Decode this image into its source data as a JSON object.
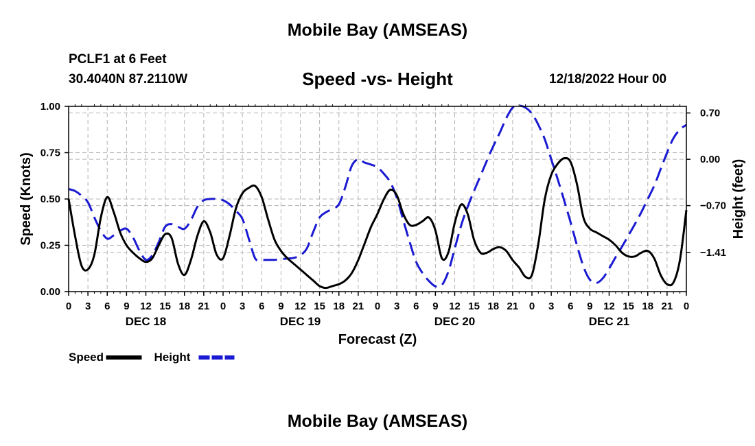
{
  "header": {
    "title": "Mobile Bay (AMSEAS)",
    "station": "PCLF1 at 6 Feet",
    "coords": "30.4040N  87.2110W",
    "subtitle": "Speed -vs- Height",
    "datetime": "12/18/2022 Hour 00"
  },
  "footer": {
    "title": "Mobile Bay (AMSEAS)"
  },
  "chart_data": {
    "type": "line",
    "title": "Speed -vs- Height",
    "xlabel": "Forecast (Z)",
    "ylabel": "Speed (Knots)",
    "y2label": "Height (feet)",
    "xlim": [
      0,
      96
    ],
    "ylim": [
      0,
      1
    ],
    "y2lim": [
      -2.0,
      0.8
    ],
    "x_ticks": [
      0,
      3,
      6,
      9,
      12,
      15,
      18,
      21,
      24,
      27,
      30,
      33,
      36,
      39,
      42,
      45,
      48,
      51,
      54,
      57,
      60,
      63,
      66,
      69,
      72,
      75,
      78,
      81,
      84,
      87,
      90,
      93,
      96
    ],
    "x_tick_labels": [
      "0",
      "3",
      "6",
      "9",
      "12",
      "15",
      "18",
      "21",
      "0",
      "3",
      "6",
      "9",
      "12",
      "15",
      "18",
      "21",
      "0",
      "3",
      "6",
      "9",
      "12",
      "15",
      "18",
      "21",
      "0",
      "3",
      "6",
      "9",
      "12",
      "15",
      "18",
      "21",
      "0"
    ],
    "date_labels": [
      {
        "x": 12,
        "label": "DEC 18"
      },
      {
        "x": 36,
        "label": "DEC 19"
      },
      {
        "x": 60,
        "label": "DEC 20"
      },
      {
        "x": 84,
        "label": "DEC 21"
      }
    ],
    "y_ticks": [
      0,
      0.25,
      0.5,
      0.75,
      1.0
    ],
    "y_tick_labels": [
      "0.00",
      "0.25",
      "0.50",
      "0.75",
      "1.00"
    ],
    "y2_ticks": [
      -1.41,
      -0.7,
      0.0,
      0.7
    ],
    "y2_tick_labels": [
      "−1.41",
      "−0.70",
      "0.00",
      "0.70"
    ],
    "legend": "bottom-left",
    "series": [
      {
        "name": "Speed",
        "axis": "left",
        "color": "#000000",
        "dash": "solid",
        "points": [
          [
            0,
            0.5
          ],
          [
            1,
            0.3
          ],
          [
            2,
            0.14
          ],
          [
            3,
            0.12
          ],
          [
            4,
            0.2
          ],
          [
            5,
            0.4
          ],
          [
            6,
            0.51
          ],
          [
            7,
            0.43
          ],
          [
            8,
            0.32
          ],
          [
            9,
            0.25
          ],
          [
            10,
            0.21
          ],
          [
            11,
            0.18
          ],
          [
            12,
            0.16
          ],
          [
            13,
            0.18
          ],
          [
            14,
            0.25
          ],
          [
            15,
            0.31
          ],
          [
            16,
            0.29
          ],
          [
            17,
            0.15
          ],
          [
            18,
            0.09
          ],
          [
            19,
            0.17
          ],
          [
            20,
            0.3
          ],
          [
            21,
            0.38
          ],
          [
            22,
            0.32
          ],
          [
            23,
            0.2
          ],
          [
            24,
            0.18
          ],
          [
            25,
            0.3
          ],
          [
            26,
            0.45
          ],
          [
            27,
            0.53
          ],
          [
            28,
            0.56
          ],
          [
            29,
            0.57
          ],
          [
            30,
            0.51
          ],
          [
            31,
            0.39
          ],
          [
            32,
            0.28
          ],
          [
            33,
            0.22
          ],
          [
            34,
            0.18
          ],
          [
            35,
            0.15
          ],
          [
            36,
            0.12
          ],
          [
            37,
            0.09
          ],
          [
            38,
            0.06
          ],
          [
            39,
            0.03
          ],
          [
            40,
            0.02
          ],
          [
            41,
            0.03
          ],
          [
            42,
            0.04
          ],
          [
            43,
            0.06
          ],
          [
            44,
            0.1
          ],
          [
            45,
            0.17
          ],
          [
            46,
            0.26
          ],
          [
            47,
            0.35
          ],
          [
            48,
            0.42
          ],
          [
            49,
            0.5
          ],
          [
            50,
            0.55
          ],
          [
            51,
            0.52
          ],
          [
            52,
            0.42
          ],
          [
            53,
            0.36
          ],
          [
            54,
            0.36
          ],
          [
            55,
            0.38
          ],
          [
            56,
            0.4
          ],
          [
            57,
            0.33
          ],
          [
            58,
            0.18
          ],
          [
            59,
            0.21
          ],
          [
            60,
            0.37
          ],
          [
            61,
            0.47
          ],
          [
            62,
            0.42
          ],
          [
            63,
            0.28
          ],
          [
            64,
            0.21
          ],
          [
            65,
            0.21
          ],
          [
            66,
            0.23
          ],
          [
            67,
            0.24
          ],
          [
            68,
            0.22
          ],
          [
            69,
            0.17
          ],
          [
            70,
            0.13
          ],
          [
            71,
            0.08
          ],
          [
            72,
            0.09
          ],
          [
            73,
            0.26
          ],
          [
            74,
            0.5
          ],
          [
            75,
            0.63
          ],
          [
            76,
            0.69
          ],
          [
            77,
            0.72
          ],
          [
            78,
            0.7
          ],
          [
            79,
            0.58
          ],
          [
            80,
            0.4
          ],
          [
            81,
            0.34
          ],
          [
            82,
            0.32
          ],
          [
            83,
            0.3
          ],
          [
            84,
            0.28
          ],
          [
            85,
            0.25
          ],
          [
            86,
            0.21
          ],
          [
            87,
            0.19
          ],
          [
            88,
            0.19
          ],
          [
            89,
            0.21
          ],
          [
            90,
            0.22
          ],
          [
            91,
            0.18
          ],
          [
            92,
            0.09
          ],
          [
            93,
            0.04
          ],
          [
            94,
            0.05
          ],
          [
            95,
            0.17
          ],
          [
            96,
            0.44
          ]
        ]
      },
      {
        "name": "Height",
        "axis": "right",
        "color": "#1a1ad2",
        "dash": "dashed",
        "points": [
          [
            0,
            -0.45
          ],
          [
            1,
            -0.48
          ],
          [
            2,
            -0.55
          ],
          [
            3,
            -0.65
          ],
          [
            4,
            -0.88
          ],
          [
            5,
            -1.08
          ],
          [
            6,
            -1.2
          ],
          [
            7,
            -1.15
          ],
          [
            8,
            -1.08
          ],
          [
            9,
            -1.05
          ],
          [
            10,
            -1.18
          ],
          [
            11,
            -1.38
          ],
          [
            12,
            -1.52
          ],
          [
            13,
            -1.45
          ],
          [
            14,
            -1.25
          ],
          [
            15,
            -1.02
          ],
          [
            16,
            -0.98
          ],
          [
            17,
            -1.02
          ],
          [
            18,
            -1.05
          ],
          [
            19,
            -0.92
          ],
          [
            20,
            -0.72
          ],
          [
            21,
            -0.62
          ],
          [
            22,
            -0.6
          ],
          [
            23,
            -0.6
          ],
          [
            24,
            -0.62
          ],
          [
            25,
            -0.68
          ],
          [
            26,
            -0.78
          ],
          [
            27,
            -0.9
          ],
          [
            28,
            -1.2
          ],
          [
            29,
            -1.5
          ],
          [
            30,
            -1.52
          ],
          [
            31,
            -1.52
          ],
          [
            32,
            -1.52
          ],
          [
            33,
            -1.51
          ],
          [
            34,
            -1.5
          ],
          [
            35,
            -1.49
          ],
          [
            36,
            -1.45
          ],
          [
            37,
            -1.35
          ],
          [
            38,
            -1.1
          ],
          [
            39,
            -0.88
          ],
          [
            40,
            -0.8
          ],
          [
            41,
            -0.75
          ],
          [
            42,
            -0.68
          ],
          [
            43,
            -0.42
          ],
          [
            44,
            -0.1
          ],
          [
            45,
            0.0
          ],
          [
            46,
            -0.05
          ],
          [
            47,
            -0.08
          ],
          [
            48,
            -0.12
          ],
          [
            49,
            -0.22
          ],
          [
            50,
            -0.35
          ],
          [
            51,
            -0.58
          ],
          [
            52,
            -0.92
          ],
          [
            53,
            -1.25
          ],
          [
            54,
            -1.55
          ],
          [
            55,
            -1.72
          ],
          [
            56,
            -1.84
          ],
          [
            57,
            -1.92
          ],
          [
            58,
            -1.9
          ],
          [
            59,
            -1.7
          ],
          [
            60,
            -1.35
          ],
          [
            61,
            -1.0
          ],
          [
            62,
            -0.72
          ],
          [
            63,
            -0.48
          ],
          [
            64,
            -0.25
          ],
          [
            65,
            -0.02
          ],
          [
            66,
            0.2
          ],
          [
            67,
            0.4
          ],
          [
            68,
            0.62
          ],
          [
            69,
            0.78
          ],
          [
            70,
            0.81
          ],
          [
            71,
            0.78
          ],
          [
            72,
            0.69
          ],
          [
            73,
            0.52
          ],
          [
            74,
            0.3
          ],
          [
            75,
            0.0
          ],
          [
            76,
            -0.3
          ],
          [
            77,
            -0.62
          ],
          [
            78,
            -0.95
          ],
          [
            79,
            -1.3
          ],
          [
            80,
            -1.62
          ],
          [
            81,
            -1.82
          ],
          [
            82,
            -1.87
          ],
          [
            83,
            -1.8
          ],
          [
            84,
            -1.65
          ],
          [
            85,
            -1.48
          ],
          [
            86,
            -1.32
          ],
          [
            87,
            -1.15
          ],
          [
            88,
            -0.98
          ],
          [
            89,
            -0.8
          ],
          [
            90,
            -0.6
          ],
          [
            91,
            -0.4
          ],
          [
            92,
            -0.15
          ],
          [
            93,
            0.1
          ],
          [
            94,
            0.32
          ],
          [
            95,
            0.45
          ],
          [
            96,
            0.52
          ]
        ]
      }
    ]
  }
}
